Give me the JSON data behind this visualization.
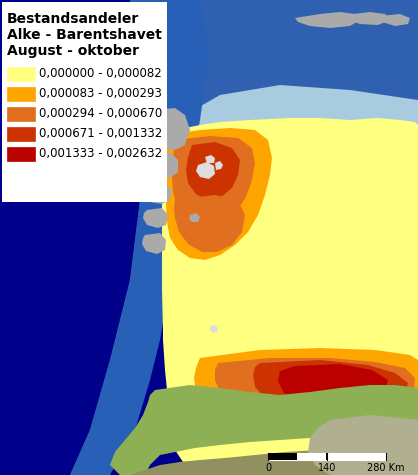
{
  "title_lines": [
    "Bestandsandeler",
    "Alke - Barentshavet",
    "August - oktober"
  ],
  "legend_entries": [
    {
      "label": "0,000000 - 0,000082",
      "color": "#FFFF80"
    },
    {
      "label": "0,000083 - 0,000293",
      "color": "#FFA500"
    },
    {
      "label": "0,000294 - 0,000670",
      "color": "#E07020"
    },
    {
      "label": "0,000671 - 0,001332",
      "color": "#CC3300"
    },
    {
      "label": "0,001333 - 0,002632",
      "color": "#BB0000"
    }
  ],
  "legend_rect_colors": [
    "#FFFF80",
    "#FFA500",
    "#E07020",
    "#CC3300",
    "#BB0000"
  ],
  "ocean_deep": "#00008B",
  "ocean_mid": "#3060B0",
  "ocean_light": "#7AAFD4",
  "ocean_lighter": "#A8CBE0",
  "legend_bg": "#FFFFFF",
  "land_gray": "#AAAAAA",
  "land_green_dark": "#7A9A40",
  "land_green_light": "#A0BC60",
  "land_green_norway": "#8DB055",
  "fig_width": 4.18,
  "fig_height": 4.75,
  "dpi": 100
}
